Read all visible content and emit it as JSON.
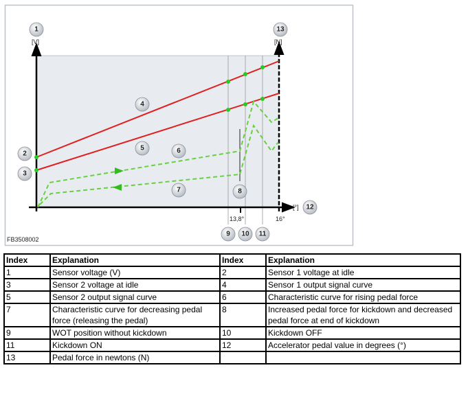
{
  "diagram": {
    "code": "FB3508002",
    "y_axis_unit": "[V]",
    "y2_axis_unit": "[N]",
    "x_axis_unit": "[°]",
    "x_ticks": [
      "13,8°",
      "16°"
    ],
    "badges": [
      "1",
      "2",
      "3",
      "4",
      "5",
      "6",
      "7",
      "8",
      "9",
      "10",
      "11",
      "12",
      "13"
    ],
    "colors": {
      "sensor_curve": "#e02020",
      "force_curve": "#5ccc3c",
      "point": "#22cc22",
      "plot_bg": "#e8ecf0"
    }
  },
  "table": {
    "headers": [
      "Index",
      "Explanation",
      "Index",
      "Explanation"
    ],
    "rows": [
      [
        "1",
        "Sensor voltage (V)",
        "2",
        "Sensor 1 voltage at idle"
      ],
      [
        "3",
        "Sensor 2 voltage at idle",
        "4",
        "Sensor 1 output signal curve"
      ],
      [
        "5",
        "Sensor 2 output signal curve",
        "6",
        "Characteristic curve for rising pedal force"
      ],
      [
        "7",
        "Characteristic curve for decreasing pedal force (releasing the pedal)",
        "8",
        "Increased pedal force for kickdown and decreased pedal force at end of kickdown"
      ],
      [
        "9",
        "WOT position without kickdown",
        "10",
        "Kickdown OFF"
      ],
      [
        "11",
        "Kickdown ON",
        "12",
        "Accelerator pedal value in degrees (°)"
      ],
      [
        "13",
        "Pedal force in newtons (N)",
        "",
        ""
      ]
    ]
  }
}
